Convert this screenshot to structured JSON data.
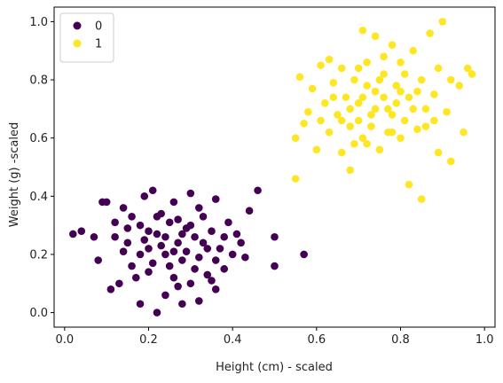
{
  "chart_data": {
    "type": "scatter",
    "title": "",
    "xlabel": "Height (cm) - scaled",
    "ylabel": "Weight (g) -scaled",
    "xlim": [
      -0.025,
      1.025
    ],
    "ylim": [
      -0.05,
      1.05
    ],
    "x_ticks": [
      0.0,
      0.2,
      0.4,
      0.6,
      0.8,
      1.0
    ],
    "x_tick_labels": [
      "0.0",
      "0.2",
      "0.4",
      "0.6",
      "0.8",
      "1.0"
    ],
    "y_ticks": [
      0.0,
      0.2,
      0.4,
      0.6,
      0.8,
      1.0
    ],
    "y_tick_labels": [
      "0.0",
      "0.2",
      "0.4",
      "0.6",
      "0.8",
      "1.0"
    ],
    "grid": false,
    "legend_position": "top-left",
    "series": [
      {
        "name": "0",
        "color": "#440154",
        "points": [
          [
            0.02,
            0.27
          ],
          [
            0.04,
            0.28
          ],
          [
            0.07,
            0.26
          ],
          [
            0.08,
            0.18
          ],
          [
            0.09,
            0.38
          ],
          [
            0.1,
            0.38
          ],
          [
            0.11,
            0.08
          ],
          [
            0.13,
            0.1
          ],
          [
            0.12,
            0.31
          ],
          [
            0.14,
            0.36
          ],
          [
            0.15,
            0.24
          ],
          [
            0.16,
            0.16
          ],
          [
            0.17,
            0.12
          ],
          [
            0.18,
            0.03
          ],
          [
            0.18,
            0.3
          ],
          [
            0.19,
            0.4
          ],
          [
            0.2,
            0.14
          ],
          [
            0.2,
            0.22
          ],
          [
            0.21,
            0.42
          ],
          [
            0.22,
            0.0
          ],
          [
            0.22,
            0.27
          ],
          [
            0.23,
            0.34
          ],
          [
            0.24,
            0.06
          ],
          [
            0.24,
            0.2
          ],
          [
            0.25,
            0.31
          ],
          [
            0.26,
            0.12
          ],
          [
            0.26,
            0.38
          ],
          [
            0.27,
            0.24
          ],
          [
            0.28,
            0.03
          ],
          [
            0.28,
            0.18
          ],
          [
            0.29,
            0.29
          ],
          [
            0.3,
            0.41
          ],
          [
            0.3,
            0.1
          ],
          [
            0.31,
            0.26
          ],
          [
            0.32,
            0.04
          ],
          [
            0.32,
            0.19
          ],
          [
            0.33,
            0.33
          ],
          [
            0.34,
            0.13
          ],
          [
            0.35,
            0.28
          ],
          [
            0.36,
            0.39
          ],
          [
            0.36,
            0.18
          ],
          [
            0.37,
            0.22
          ],
          [
            0.38,
            0.15
          ],
          [
            0.39,
            0.31
          ],
          [
            0.4,
            0.2
          ],
          [
            0.41,
            0.27
          ],
          [
            0.42,
            0.24
          ],
          [
            0.43,
            0.19
          ],
          [
            0.44,
            0.35
          ],
          [
            0.46,
            0.42
          ],
          [
            0.5,
            0.26
          ],
          [
            0.5,
            0.16
          ],
          [
            0.57,
            0.2
          ],
          [
            0.14,
            0.21
          ],
          [
            0.16,
            0.33
          ],
          [
            0.19,
            0.25
          ],
          [
            0.21,
            0.17
          ],
          [
            0.23,
            0.23
          ],
          [
            0.25,
            0.16
          ],
          [
            0.27,
            0.32
          ],
          [
            0.29,
            0.21
          ],
          [
            0.31,
            0.15
          ],
          [
            0.33,
            0.24
          ],
          [
            0.35,
            0.11
          ],
          [
            0.24,
            0.26
          ],
          [
            0.28,
            0.27
          ],
          [
            0.26,
            0.21
          ],
          [
            0.22,
            0.33
          ],
          [
            0.3,
            0.3
          ],
          [
            0.2,
            0.28
          ],
          [
            0.18,
            0.2
          ],
          [
            0.32,
            0.36
          ],
          [
            0.36,
            0.08
          ],
          [
            0.12,
            0.26
          ],
          [
            0.15,
            0.29
          ],
          [
            0.34,
            0.22
          ],
          [
            0.38,
            0.26
          ],
          [
            0.27,
            0.09
          ]
        ]
      },
      {
        "name": "1",
        "color": "#fde725",
        "points": [
          [
            0.55,
            0.46
          ],
          [
            0.55,
            0.6
          ],
          [
            0.56,
            0.81
          ],
          [
            0.57,
            0.65
          ],
          [
            0.58,
            0.69
          ],
          [
            0.59,
            0.77
          ],
          [
            0.6,
            0.56
          ],
          [
            0.61,
            0.85
          ],
          [
            0.62,
            0.72
          ],
          [
            0.63,
            0.87
          ],
          [
            0.63,
            0.62
          ],
          [
            0.64,
            0.79
          ],
          [
            0.65,
            0.68
          ],
          [
            0.66,
            0.84
          ],
          [
            0.66,
            0.55
          ],
          [
            0.67,
            0.74
          ],
          [
            0.68,
            0.49
          ],
          [
            0.68,
            0.64
          ],
          [
            0.69,
            0.8
          ],
          [
            0.7,
            0.72
          ],
          [
            0.71,
            0.97
          ],
          [
            0.71,
            0.6
          ],
          [
            0.72,
            0.86
          ],
          [
            0.73,
            0.68
          ],
          [
            0.74,
            0.76
          ],
          [
            0.74,
            0.95
          ],
          [
            0.75,
            0.56
          ],
          [
            0.76,
            0.82
          ],
          [
            0.77,
            0.7
          ],
          [
            0.78,
            0.92
          ],
          [
            0.78,
            0.62
          ],
          [
            0.79,
            0.78
          ],
          [
            0.8,
            0.86
          ],
          [
            0.81,
            0.66
          ],
          [
            0.82,
            0.44
          ],
          [
            0.82,
            0.74
          ],
          [
            0.83,
            0.9
          ],
          [
            0.84,
            0.63
          ],
          [
            0.85,
            0.39
          ],
          [
            0.85,
            0.8
          ],
          [
            0.86,
            0.7
          ],
          [
            0.87,
            0.96
          ],
          [
            0.88,
            0.75
          ],
          [
            0.89,
            0.55
          ],
          [
            0.89,
            0.84
          ],
          [
            0.9,
            1.0
          ],
          [
            0.91,
            0.69
          ],
          [
            0.92,
            0.52
          ],
          [
            0.92,
            0.8
          ],
          [
            0.94,
            0.78
          ],
          [
            0.95,
            0.62
          ],
          [
            0.96,
            0.84
          ],
          [
            0.97,
            0.82
          ],
          [
            0.68,
            0.7
          ],
          [
            0.7,
            0.66
          ],
          [
            0.72,
            0.78
          ],
          [
            0.74,
            0.7
          ],
          [
            0.76,
            0.74
          ],
          [
            0.78,
            0.68
          ],
          [
            0.8,
            0.76
          ],
          [
            0.73,
            0.64
          ],
          [
            0.75,
            0.8
          ],
          [
            0.77,
            0.62
          ],
          [
            0.79,
            0.72
          ],
          [
            0.71,
            0.74
          ],
          [
            0.81,
            0.82
          ],
          [
            0.64,
            0.74
          ],
          [
            0.86,
            0.64
          ],
          [
            0.69,
            0.58
          ],
          [
            0.83,
            0.7
          ],
          [
            0.66,
            0.66
          ],
          [
            0.72,
            0.58
          ],
          [
            0.84,
            0.76
          ],
          [
            0.61,
            0.66
          ],
          [
            0.88,
            0.66
          ],
          [
            0.76,
            0.88
          ],
          [
            0.7,
            0.84
          ],
          [
            0.8,
            0.6
          ]
        ]
      }
    ]
  }
}
